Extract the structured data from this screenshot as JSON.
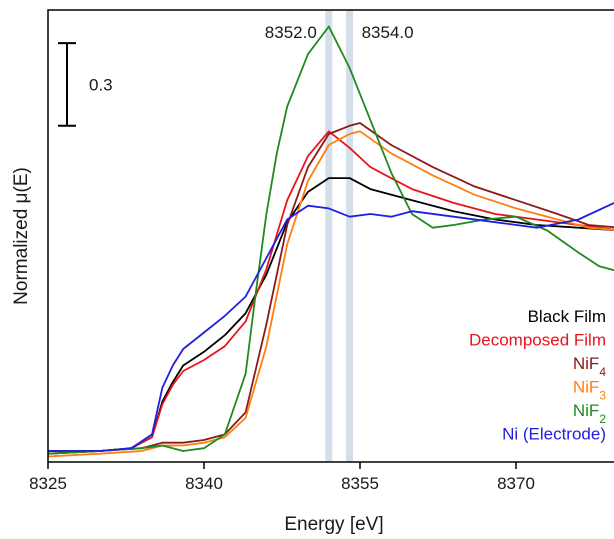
{
  "chart_data": {
    "type": "line",
    "xlabel": "Energy [eV]",
    "ylabel": "Normalized μ(E)",
    "xlim": [
      8325,
      8380
    ],
    "ylim": [
      -0.02,
      1.62
    ],
    "x_ticks": [
      "8325",
      "8340",
      "8355",
      "8370"
    ],
    "x_tick_values": [
      8325,
      8340,
      8355,
      8370
    ],
    "grid": false,
    "legend_position": "lower-right",
    "scale_bar": {
      "label": "0.3",
      "value": 0.3
    },
    "reference_lines": [
      {
        "label": "8352.0",
        "x": 8352.0
      },
      {
        "label": "8354.0",
        "x": 8354.0
      }
    ],
    "series": [
      {
        "name": "Black Film",
        "color": "#000000",
        "x": [
          8325,
          8330,
          8333,
          8335,
          8336,
          8337,
          8338,
          8340,
          8342,
          8344,
          8346,
          8348,
          8350,
          8352,
          8354,
          8356,
          8360,
          8364,
          8368,
          8372,
          8376,
          8380
        ],
        "y": [
          0.02,
          0.02,
          0.03,
          0.07,
          0.2,
          0.27,
          0.33,
          0.38,
          0.44,
          0.52,
          0.66,
          0.85,
          0.96,
          1.01,
          1.01,
          0.97,
          0.93,
          0.89,
          0.86,
          0.84,
          0.83,
          0.82
        ]
      },
      {
        "name": "Decomposed Film",
        "color": "#e8141b",
        "x": [
          8325,
          8330,
          8333,
          8335,
          8336,
          8337,
          8338,
          8340,
          8342,
          8344,
          8346,
          8348,
          8350,
          8352,
          8354,
          8356,
          8360,
          8364,
          8368,
          8372,
          8376,
          8380
        ],
        "y": [
          0.01,
          0.02,
          0.03,
          0.07,
          0.19,
          0.26,
          0.31,
          0.35,
          0.4,
          0.49,
          0.68,
          0.93,
          1.09,
          1.18,
          1.12,
          1.05,
          0.97,
          0.92,
          0.88,
          0.86,
          0.84,
          0.82
        ]
      },
      {
        "name": "NiF4",
        "color": "#8b1a1a",
        "x": [
          8325,
          8330,
          8334,
          8336,
          8338,
          8340,
          8342,
          8344,
          8346,
          8348,
          8350,
          8352,
          8354,
          8355,
          8358,
          8362,
          8366,
          8370,
          8374,
          8377,
          8380
        ],
        "y": [
          0.01,
          0.02,
          0.03,
          0.05,
          0.05,
          0.06,
          0.08,
          0.16,
          0.48,
          0.84,
          1.05,
          1.17,
          1.2,
          1.21,
          1.13,
          1.05,
          0.98,
          0.93,
          0.88,
          0.84,
          0.83
        ]
      },
      {
        "name": "NiF3",
        "color": "#ff7f0e",
        "x": [
          8325,
          8330,
          8334,
          8336,
          8338,
          8340,
          8342,
          8344,
          8346,
          8348,
          8350,
          8352,
          8354,
          8355,
          8358,
          8362,
          8366,
          8370,
          8374,
          8377,
          8380
        ],
        "y": [
          0.0,
          0.01,
          0.02,
          0.04,
          0.04,
          0.05,
          0.07,
          0.14,
          0.4,
          0.77,
          1.0,
          1.13,
          1.17,
          1.18,
          1.1,
          1.02,
          0.95,
          0.9,
          0.86,
          0.83,
          0.82
        ]
      },
      {
        "name": "NiF2",
        "color": "#1f8a1f",
        "x": [
          8325,
          8330,
          8334,
          8336,
          8338,
          8340,
          8342,
          8344,
          8345,
          8346,
          8347,
          8348,
          8350,
          8352,
          8354,
          8356,
          8358,
          8360,
          8362,
          8364,
          8367,
          8370,
          8373,
          8376,
          8378,
          8380
        ],
        "y": [
          0.01,
          0.02,
          0.03,
          0.04,
          0.02,
          0.03,
          0.08,
          0.3,
          0.6,
          0.88,
          1.1,
          1.27,
          1.46,
          1.56,
          1.41,
          1.22,
          1.03,
          0.88,
          0.83,
          0.84,
          0.86,
          0.87,
          0.82,
          0.74,
          0.69,
          0.67
        ]
      },
      {
        "name": "Ni (Electrode)",
        "color": "#1f1fe0",
        "x": [
          8325,
          8330,
          8333,
          8335,
          8336,
          8337,
          8338,
          8340,
          8342,
          8344,
          8346,
          8348,
          8350,
          8352,
          8354,
          8356,
          8358,
          8360,
          8364,
          8368,
          8372,
          8376,
          8380
        ],
        "y": [
          0.02,
          0.02,
          0.03,
          0.08,
          0.25,
          0.33,
          0.39,
          0.45,
          0.51,
          0.58,
          0.72,
          0.86,
          0.91,
          0.9,
          0.87,
          0.88,
          0.87,
          0.89,
          0.87,
          0.85,
          0.83,
          0.86,
          0.93
        ]
      }
    ],
    "legend_labels": [
      {
        "main": "Black Film",
        "sub": ""
      },
      {
        "main": "Decomposed Film",
        "sub": ""
      },
      {
        "main": "NiF",
        "sub": "4"
      },
      {
        "main": "NiF",
        "sub": "3"
      },
      {
        "main": "NiF",
        "sub": "2"
      },
      {
        "main": "Ni (Electrode)",
        "sub": ""
      }
    ]
  }
}
